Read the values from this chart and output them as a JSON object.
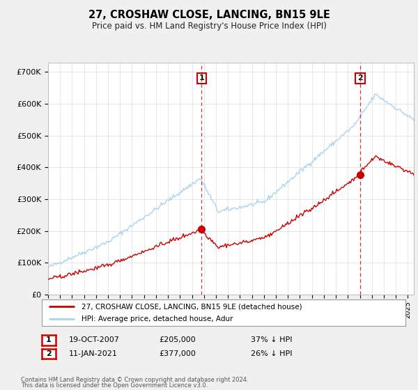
{
  "title": "27, CROSHAW CLOSE, LANCING, BN15 9LE",
  "subtitle": "Price paid vs. HM Land Registry's House Price Index (HPI)",
  "ylabel_ticks": [
    "£0",
    "£100K",
    "£200K",
    "£300K",
    "£400K",
    "£500K",
    "£600K",
    "£700K"
  ],
  "ytick_values": [
    0,
    100000,
    200000,
    300000,
    400000,
    500000,
    600000,
    700000
  ],
  "ylim": [
    0,
    730000
  ],
  "hpi_color": "#aad4f0",
  "price_color": "#cc0000",
  "date1": 2007.79,
  "date2": 2021.03,
  "price1": 205000,
  "price2": 377000,
  "legend_line1": "27, CROSHAW CLOSE, LANCING, BN15 9LE (detached house)",
  "legend_line2": "HPI: Average price, detached house, Adur",
  "footer1": "Contains HM Land Registry data © Crown copyright and database right 2024.",
  "footer2": "This data is licensed under the Open Government Licence v3.0.",
  "background_color": "#f0f0f0",
  "plot_bg_color": "#ffffff",
  "grid_color": "#dddddd",
  "xmin": 1995,
  "xmax": 2025.5
}
